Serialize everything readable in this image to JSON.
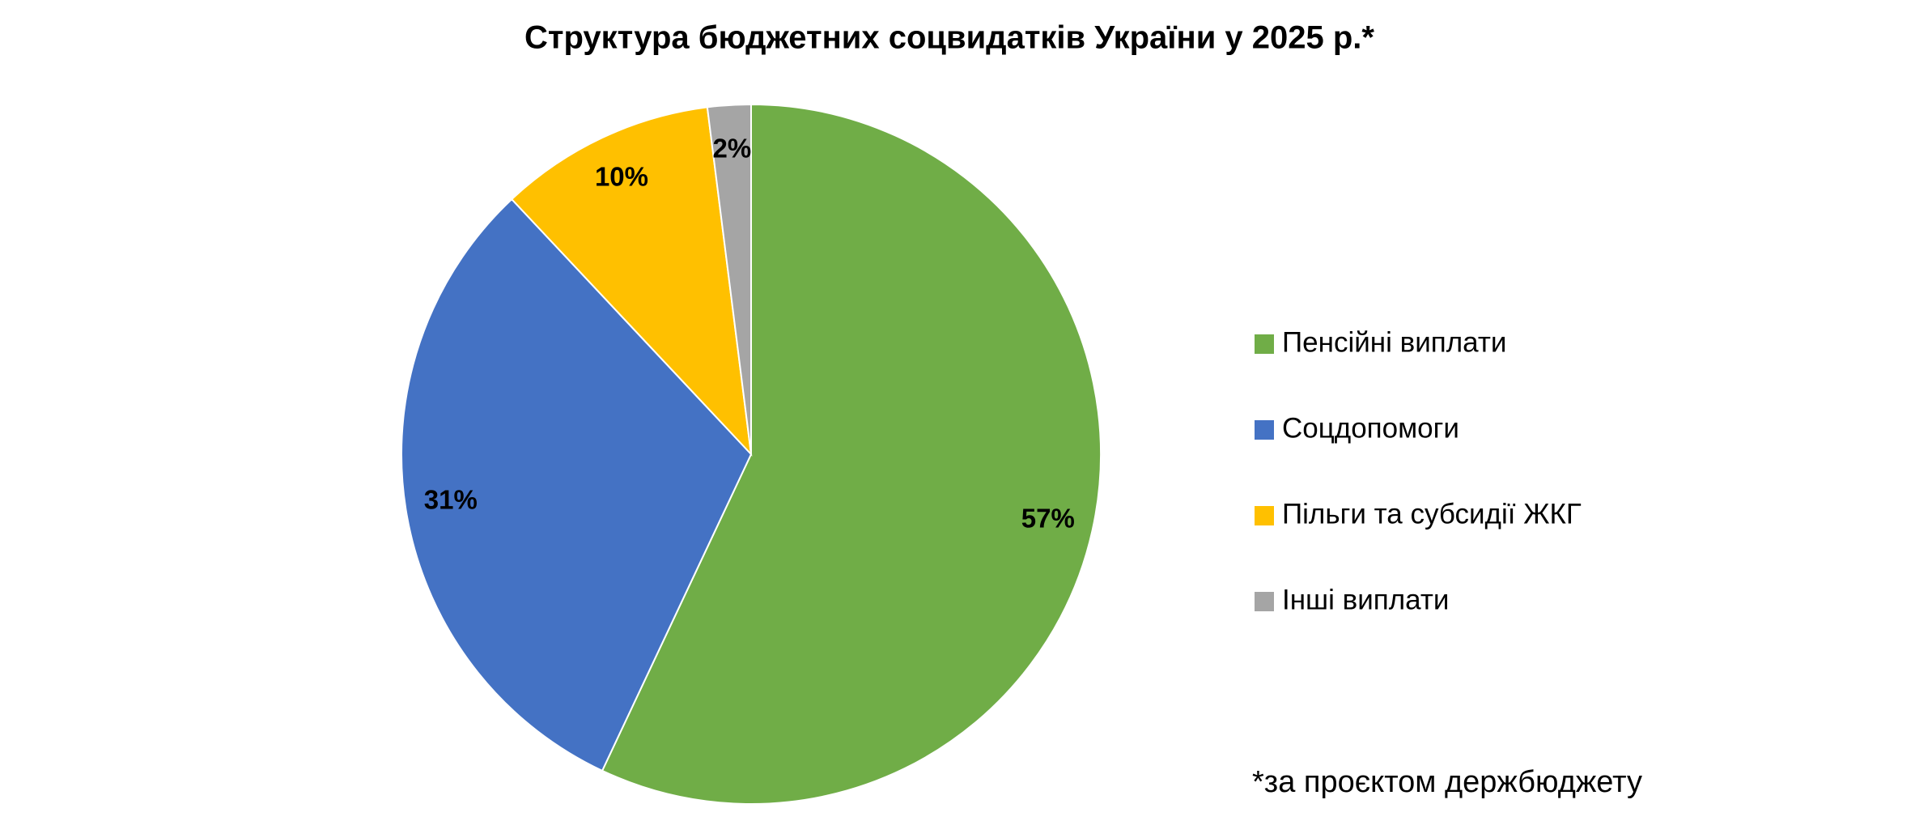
{
  "chart_data": {
    "type": "pie",
    "title": "Структура бюджетних соцвидатків України у 2025 р.*",
    "categories": [
      "Пенсійні виплати",
      "Соцдопомоги",
      "Пільги та субсидії ЖКГ",
      "Інші виплати"
    ],
    "values": [
      57,
      31,
      10,
      2
    ],
    "value_labels": [
      "57%",
      "31%",
      "10%",
      "2%"
    ],
    "colors": [
      "#70ad47",
      "#4472c4",
      "#ffc000",
      "#a5a5a5"
    ],
    "legend": "right",
    "footnote": "*за проєктом держбюджету"
  }
}
